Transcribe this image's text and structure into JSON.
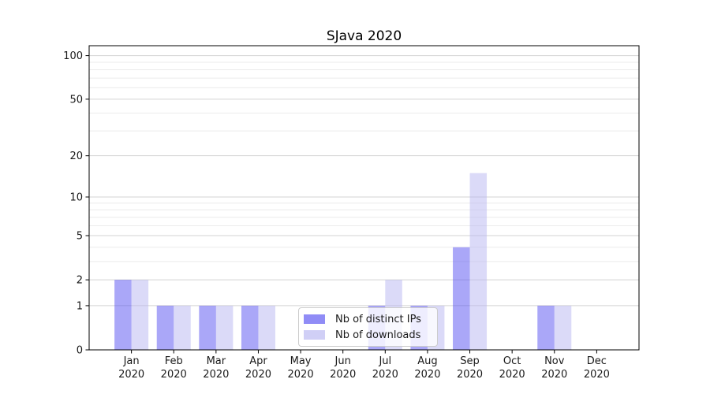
{
  "chart_data": {
    "type": "bar",
    "title": "SJava 2020",
    "categories": [
      "Jan 2020",
      "Feb 2020",
      "Mar 2020",
      "Apr 2020",
      "May 2020",
      "Jun 2020",
      "Jul 2020",
      "Aug 2020",
      "Sep 2020",
      "Oct 2020",
      "Nov 2020",
      "Dec 2020"
    ],
    "series": [
      {
        "name": "Nb of distinct IPs",
        "values": [
          2,
          1,
          1,
          1,
          0,
          0,
          1,
          1,
          4,
          0,
          1,
          0
        ],
        "color": "#554FF1",
        "alpha": 0.5
      },
      {
        "name": "Nb of downloads",
        "values": [
          2,
          1,
          1,
          1,
          0,
          0,
          2,
          1,
          15,
          0,
          1,
          0
        ],
        "color": "#B7B5F1",
        "alpha": 0.5
      }
    ],
    "xlabel": "",
    "ylabel": "",
    "yscale": "log1p",
    "ylim": [
      0,
      117
    ],
    "ytick_values": [
      0,
      1,
      2,
      5,
      10,
      20,
      50,
      100
    ],
    "minor_grid_values": [
      3,
      4,
      6,
      7,
      8,
      9,
      30,
      40,
      60,
      70,
      80,
      90
    ],
    "grid": true,
    "legend_position": "lower center",
    "colors": {
      "major_grid": "#d3d3d3",
      "minor_grid": "#ebebeb",
      "spine": "#000000",
      "tick_text": "#1a1a1a",
      "background": "#ffffff"
    }
  }
}
